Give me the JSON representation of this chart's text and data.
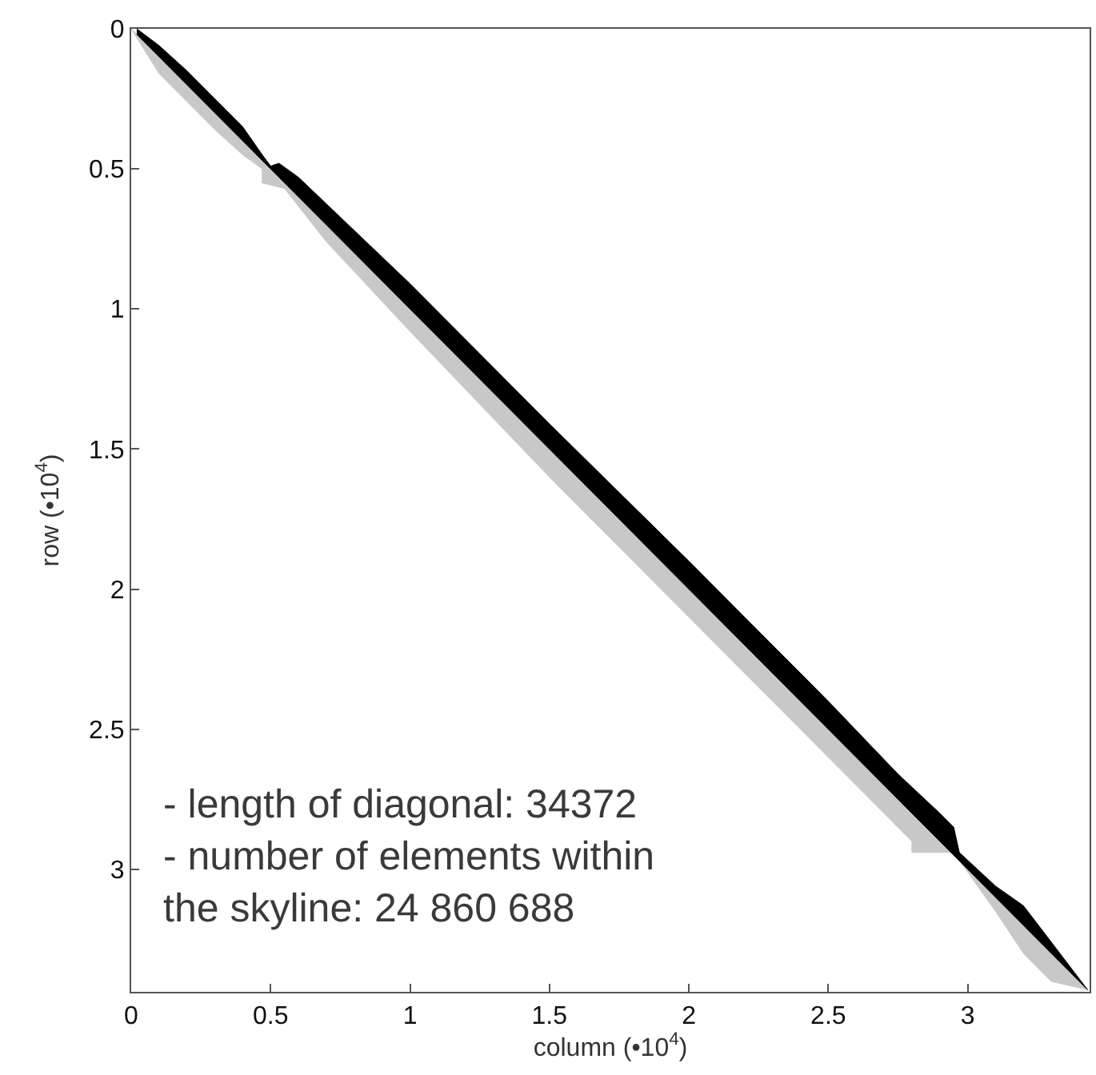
{
  "chart_data": {
    "type": "area",
    "xlabel": "column (•10$^{4}$)",
    "ylabel": "row (•10$^{4}$)",
    "xlim": [
      0,
      3.4372
    ],
    "ylim": [
      3.4372,
      0
    ],
    "xticks": [
      0,
      0.5,
      1,
      1.5,
      2,
      2.5,
      3
    ],
    "yticks": [
      0,
      0.5,
      1,
      1.5,
      2,
      2.5,
      3
    ],
    "series": [
      {
        "color": "#c8c8c8",
        "x": [
          0,
          0.1,
          0.2,
          0.3,
          0.4,
          0.47,
          0.47,
          0.55,
          0.7,
          1.0,
          1.5,
          2.0,
          2.5,
          2.8,
          2.8,
          2.95,
          3.1,
          3.2,
          3.3,
          3.43
        ],
        "values": [
          0,
          0.16,
          0.26,
          0.36,
          0.45,
          0.5,
          0.55,
          0.57,
          0.76,
          1.08,
          1.6,
          2.1,
          2.6,
          2.9,
          2.94,
          2.94,
          3.15,
          3.3,
          3.4,
          3.43
        ]
      },
      {
        "color": "#000000",
        "x": [
          0.02,
          0.1,
          0.2,
          0.3,
          0.4,
          0.47,
          0.5,
          0.53,
          0.6,
          0.8,
          1.0,
          1.5,
          2.0,
          2.5,
          2.75,
          2.9,
          2.95,
          2.97,
          3.1,
          3.2,
          3.3,
          3.43
        ],
        "values": [
          0,
          0.06,
          0.15,
          0.25,
          0.35,
          0.45,
          0.49,
          0.48,
          0.53,
          0.72,
          0.91,
          1.41,
          1.9,
          2.4,
          2.66,
          2.8,
          2.85,
          2.94,
          3.06,
          3.13,
          3.26,
          3.43
        ]
      }
    ],
    "annotations": [
      "- length of diagonal: 34372\n- number of elements within\nthe skyline: 24 860 688"
    ]
  }
}
